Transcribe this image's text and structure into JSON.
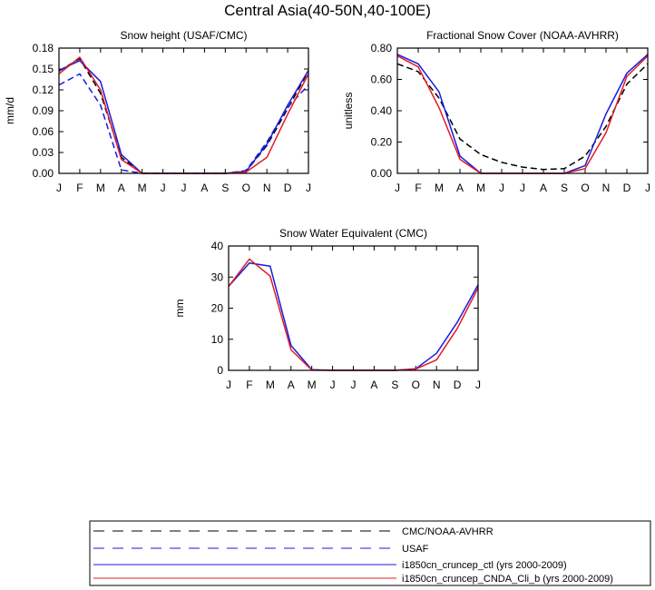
{
  "figure": {
    "title": "Central Asia(40-50N,40-100E)"
  },
  "colors": {
    "obs1": "#000000",
    "obs2": "#1a1adf",
    "ctl": "#1a1adf",
    "exp": "#e01c24"
  },
  "legend": {
    "entries": [
      {
        "key": "obs1",
        "label": "CMC/NOAA-AVHRR",
        "style": "dashed"
      },
      {
        "key": "obs2",
        "label": "USAF",
        "style": "dashed"
      },
      {
        "key": "ctl",
        "label": "i1850cn_cruncep_ctl (yrs 2000-2009)",
        "style": "solid"
      },
      {
        "key": "exp",
        "label": "i1850cn_cruncep_CNDA_Cli_b (yrs 2000-2009)",
        "style": "solid"
      }
    ]
  },
  "chart_data": [
    {
      "id": "snow-height",
      "type": "line",
      "title": "Snow height (USAF/CMC)",
      "ylabel": "mm/d",
      "xlabel": "",
      "categories": [
        "J",
        "F",
        "M",
        "A",
        "M",
        "J",
        "J",
        "A",
        "S",
        "O",
        "N",
        "D",
        "J"
      ],
      "ylim": [
        0,
        0.18
      ],
      "yticks": [
        "0.00",
        "0.03",
        "0.06",
        "0.09",
        "0.12",
        "0.15",
        "0.18"
      ],
      "series": [
        {
          "key": "obs1",
          "style": "dashed",
          "values": [
            0.147,
            0.165,
            0.115,
            0.023,
            0.0,
            0.0,
            0.0,
            0.0,
            0.0,
            0.003,
            0.04,
            0.093,
            0.147
          ]
        },
        {
          "key": "obs2",
          "style": "dashed",
          "values": [
            0.127,
            0.143,
            0.098,
            0.005,
            0.0,
            0.0,
            0.0,
            0.0,
            0.0,
            0.004,
            0.045,
            0.095,
            0.127
          ]
        },
        {
          "key": "ctl",
          "style": "solid",
          "values": [
            0.148,
            0.162,
            0.132,
            0.027,
            0.0,
            0.0,
            0.0,
            0.0,
            0.0,
            0.003,
            0.042,
            0.098,
            0.148
          ]
        },
        {
          "key": "exp",
          "style": "solid",
          "values": [
            0.143,
            0.167,
            0.12,
            0.02,
            0.0,
            0.0,
            0.0,
            0.0,
            0.0,
            0.002,
            0.023,
            0.085,
            0.143
          ]
        }
      ]
    },
    {
      "id": "fractional-snow-cover",
      "type": "line",
      "title": "Fractional Snow Cover (NOAA-AVHRR)",
      "ylabel": "unitless",
      "xlabel": "",
      "categories": [
        "J",
        "F",
        "M",
        "A",
        "M",
        "J",
        "J",
        "A",
        "S",
        "O",
        "N",
        "D",
        "J"
      ],
      "ylim": [
        0,
        0.8
      ],
      "yticks": [
        "0.00",
        "0.20",
        "0.40",
        "0.60",
        "0.80"
      ],
      "series": [
        {
          "key": "obs1",
          "style": "dashed",
          "values": [
            0.7,
            0.65,
            0.48,
            0.22,
            0.12,
            0.07,
            0.04,
            0.025,
            0.03,
            0.11,
            0.3,
            0.57,
            0.7
          ]
        },
        {
          "key": "ctl",
          "style": "solid",
          "values": [
            0.76,
            0.7,
            0.52,
            0.11,
            0.0,
            0.0,
            0.0,
            0.0,
            0.0,
            0.05,
            0.38,
            0.64,
            0.76
          ]
        },
        {
          "key": "exp",
          "style": "solid",
          "values": [
            0.75,
            0.68,
            0.42,
            0.09,
            0.0,
            0.0,
            0.0,
            0.0,
            0.0,
            0.03,
            0.26,
            0.62,
            0.75
          ]
        }
      ]
    },
    {
      "id": "snow-water-equivalent",
      "type": "line",
      "title": "Snow Water Equivalent (CMC)",
      "ylabel": "mm",
      "xlabel": "",
      "categories": [
        "J",
        "F",
        "M",
        "A",
        "M",
        "J",
        "J",
        "A",
        "S",
        "O",
        "N",
        "D",
        "J"
      ],
      "ylim": [
        0,
        40
      ],
      "yticks": [
        "0",
        "10",
        "20",
        "30",
        "40"
      ],
      "series": [
        {
          "key": "ctl",
          "style": "solid",
          "values": [
            27.0,
            34.5,
            33.5,
            8.0,
            0.2,
            0.0,
            0.0,
            0.0,
            0.0,
            0.5,
            5.5,
            15.5,
            27.5
          ]
        },
        {
          "key": "exp",
          "style": "solid",
          "values": [
            27.0,
            35.8,
            30.3,
            6.6,
            0.1,
            0.0,
            0.0,
            0.0,
            0.0,
            0.4,
            3.4,
            13.5,
            26.5
          ]
        }
      ]
    }
  ]
}
